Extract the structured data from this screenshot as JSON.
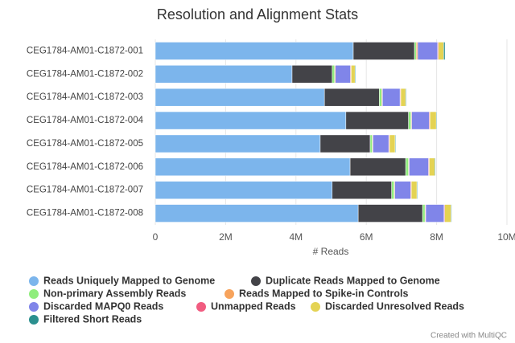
{
  "chart_data": {
    "type": "stacked-barh",
    "title": "Resolution and Alignment Stats",
    "x_label": "# Reads",
    "credit": "Created with MultiQC",
    "categories": [
      "CEG1784-AM01-C1872-001",
      "CEG1784-AM01-C1872-002",
      "CEG1784-AM01-C1872-003",
      "CEG1784-AM01-C1872-004",
      "CEG1784-AM01-C1872-005",
      "CEG1784-AM01-C1872-006",
      "CEG1784-AM01-C1872-007",
      "CEG1784-AM01-C1872-008"
    ],
    "xlim": [
      0,
      10000000
    ],
    "xticks": [
      0,
      {
        "value": 2000000,
        "label": "2M"
      },
      {
        "value": 4000000,
        "label": "4M"
      },
      {
        "value": 6000000,
        "label": "6M"
      },
      {
        "value": 8000000,
        "label": "8M"
      },
      {
        "value": 10000000,
        "label": "10M"
      }
    ],
    "grid": true,
    "series": [
      {
        "name": "Reads Uniquely Mapped to Genome",
        "color": "#7cb5ec",
        "values": [
          5630000,
          3890000,
          4810000,
          5420000,
          4690000,
          5540000,
          5030000,
          5770000
        ]
      },
      {
        "name": "Duplicate Reads Mapped to Genome",
        "color": "#434348",
        "values": [
          1740000,
          1140000,
          1560000,
          1780000,
          1420000,
          1580000,
          1690000,
          1830000
        ]
      },
      {
        "name": "Non-primary Assembly Reads",
        "color": "#90ed7d",
        "values": [
          50000,
          70000,
          70000,
          70000,
          60000,
          80000,
          70000,
          70000
        ]
      },
      {
        "name": "Reads Mapped to Spike-in Controls",
        "color": "#f7a35c",
        "values": [
          40000,
          20000,
          20000,
          20000,
          20000,
          20000,
          20000,
          20000
        ]
      },
      {
        "name": "Discarded MAPQ0 Reads",
        "color": "#8085e9",
        "values": [
          570000,
          430000,
          500000,
          500000,
          450000,
          550000,
          450000,
          520000
        ]
      },
      {
        "name": "Unmapped Reads",
        "color": "#f15c80",
        "values": [
          20000,
          20000,
          20000,
          20000,
          20000,
          20000,
          20000,
          20000
        ]
      },
      {
        "name": "Discarded Unresolved Reads",
        "color": "#e4d354",
        "values": [
          150000,
          110000,
          140000,
          180000,
          160000,
          160000,
          160000,
          180000
        ]
      },
      {
        "name": "Filtered Short Reads",
        "color": "#2b908f",
        "values": [
          40000,
          20000,
          20000,
          20000,
          20000,
          20000,
          20000,
          20000
        ]
      }
    ]
  }
}
